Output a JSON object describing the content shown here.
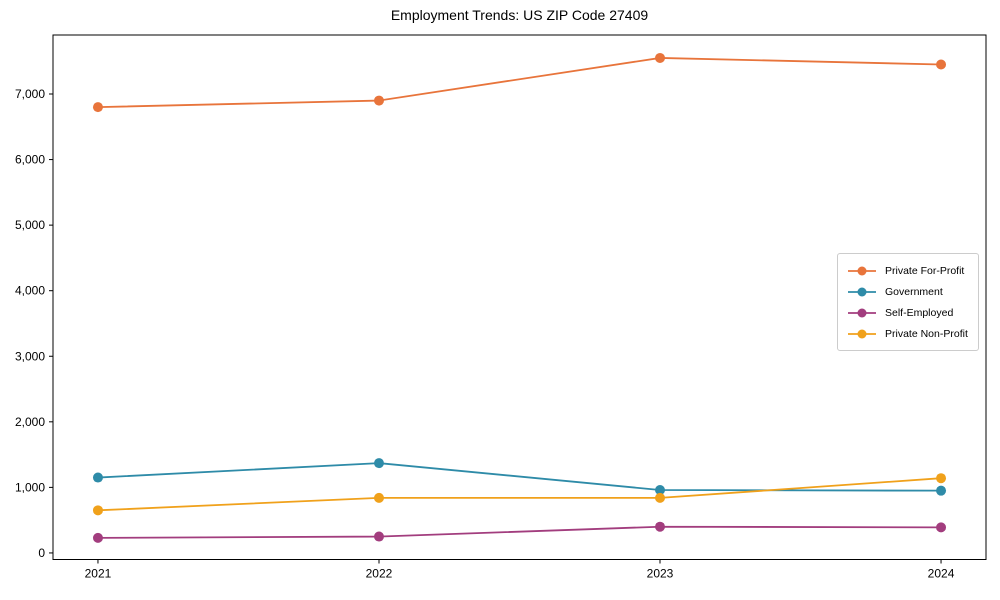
{
  "window": {
    "background_color": "#ffffff"
  },
  "chart_data": {
    "type": "line",
    "title": "Employment Trends: US ZIP Code 27409",
    "xlabel": "",
    "ylabel": "",
    "categories": [
      2021,
      2022,
      2023,
      2024
    ],
    "series": [
      {
        "name": "Private For-Profit",
        "color": "#e8743b",
        "values": [
          6800,
          6900,
          7550,
          7450
        ]
      },
      {
        "name": "Government",
        "color": "#2e8ba8",
        "values": [
          1150,
          1370,
          960,
          950
        ]
      },
      {
        "name": "Self-Employed",
        "color": "#a23d7e",
        "values": [
          230,
          250,
          400,
          390
        ]
      },
      {
        "name": "Private Non-Profit",
        "color": "#f0a11b",
        "values": [
          650,
          840,
          840,
          1140
        ]
      }
    ],
    "xlim": [
      2020.84,
      2024.16
    ],
    "ylim": [
      -100,
      7900
    ],
    "xticks": {
      "values": [
        2021,
        2022,
        2023,
        2024
      ],
      "labels": [
        "2021",
        "2022",
        "2023",
        "2024"
      ]
    },
    "yticks": {
      "values": [
        0,
        1000,
        2000,
        3000,
        4000,
        5000,
        6000,
        7000
      ],
      "labels": [
        "0",
        "1,000",
        "2,000",
        "3,000",
        "4,000",
        "5,000",
        "6,000",
        "7,000"
      ]
    },
    "grid": false,
    "legend_position": "center-right",
    "marker": "circle",
    "line_width": 1.8,
    "marker_radius": 5,
    "axis_color": "#000000"
  }
}
